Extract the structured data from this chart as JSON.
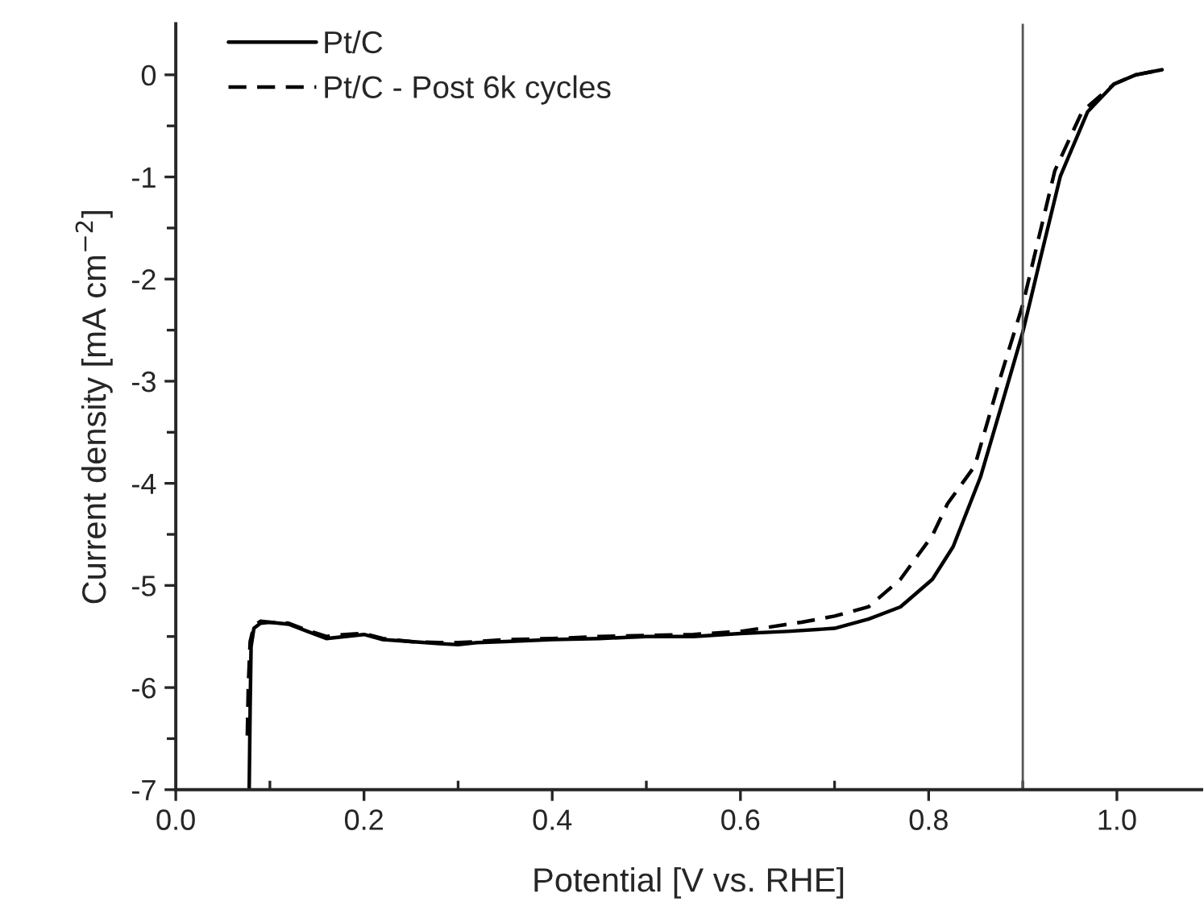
{
  "chart_data": {
    "type": "line",
    "xlabel": "Potential [V vs. RHE]",
    "ylabel": "Current density [mA cm$^{−2}$]",
    "xlim": [
      0,
      1.09
    ],
    "ylim": [
      -7,
      0.5
    ],
    "xticks": [
      {
        "value": 0.0,
        "label": "0.0"
      },
      {
        "value": 0.1,
        "label": null
      },
      {
        "value": 0.2,
        "label": "0.2"
      },
      {
        "value": 0.3,
        "label": null
      },
      {
        "value": 0.4,
        "label": "0.4"
      },
      {
        "value": 0.5,
        "label": null
      },
      {
        "value": 0.6,
        "label": "0.6"
      },
      {
        "value": 0.7,
        "label": null
      },
      {
        "value": 0.8,
        "label": "0.8"
      },
      {
        "value": 0.9,
        "label": null
      },
      {
        "value": 1.0,
        "label": "1.0"
      }
    ],
    "yticks": [
      {
        "value": -7,
        "label": "-7"
      },
      {
        "value": -6.5,
        "label": null
      },
      {
        "value": -6,
        "label": "-6"
      },
      {
        "value": -5.5,
        "label": null
      },
      {
        "value": -5,
        "label": "-5"
      },
      {
        "value": -4.5,
        "label": null
      },
      {
        "value": -4,
        "label": "-4"
      },
      {
        "value": -3.5,
        "label": null
      },
      {
        "value": -3,
        "label": "-3"
      },
      {
        "value": -2.5,
        "label": null
      },
      {
        "value": -2,
        "label": "-2"
      },
      {
        "value": -1.5,
        "label": null
      },
      {
        "value": -1,
        "label": "-1"
      },
      {
        "value": -0.5,
        "label": null
      },
      {
        "value": 0,
        "label": "0"
      }
    ],
    "grid": false,
    "legend": "top left",
    "marker": "none",
    "ref_lines": [
      {
        "axis": "x",
        "value": 0.9,
        "color": "#555555",
        "line_style": "solid"
      }
    ],
    "series": [
      {
        "name": "Pt/C",
        "color": "#000000",
        "line_style": "solid",
        "x": [
          0.078,
          0.079,
          0.08,
          0.083,
          0.09,
          0.1,
          0.12,
          0.14,
          0.16,
          0.18,
          0.2,
          0.22,
          0.25,
          0.28,
          0.3,
          0.32,
          0.35,
          0.4,
          0.45,
          0.5,
          0.55,
          0.6,
          0.65,
          0.7,
          0.736,
          0.77,
          0.804,
          0.826,
          0.855,
          0.877,
          0.9,
          0.92,
          0.94,
          0.969,
          0.997,
          1.02,
          1.048
        ],
        "values": [
          -7,
          -6.2,
          -5.6,
          -5.42,
          -5.37,
          -5.36,
          -5.38,
          -5.45,
          -5.52,
          -5.5,
          -5.48,
          -5.53,
          -5.55,
          -5.57,
          -5.58,
          -5.56,
          -5.55,
          -5.53,
          -5.52,
          -5.5,
          -5.5,
          -5.47,
          -5.45,
          -5.42,
          -5.33,
          -5.21,
          -4.94,
          -4.62,
          -3.94,
          -3.25,
          -2.52,
          -1.75,
          -0.99,
          -0.36,
          -0.09,
          0.0,
          0.05
        ]
      },
      {
        "name": "Pt/C - Post 6k cycles",
        "color": "#000000",
        "line_style": "dashed",
        "x": [
          0.076,
          0.077,
          0.079,
          0.083,
          0.09,
          0.1,
          0.12,
          0.14,
          0.16,
          0.18,
          0.2,
          0.22,
          0.25,
          0.28,
          0.3,
          0.32,
          0.35,
          0.4,
          0.45,
          0.5,
          0.55,
          0.6,
          0.665,
          0.7,
          0.736,
          0.77,
          0.804,
          0.82,
          0.849,
          0.875,
          0.9,
          0.934,
          0.963,
          0.997,
          1.02,
          1.048
        ],
        "values": [
          -6.47,
          -6.0,
          -5.55,
          -5.4,
          -5.35,
          -5.36,
          -5.37,
          -5.44,
          -5.5,
          -5.48,
          -5.47,
          -5.52,
          -5.55,
          -5.56,
          -5.56,
          -5.55,
          -5.53,
          -5.52,
          -5.5,
          -5.49,
          -5.48,
          -5.45,
          -5.36,
          -5.3,
          -5.21,
          -4.94,
          -4.51,
          -4.2,
          -3.83,
          -3.0,
          -2.25,
          -0.94,
          -0.36,
          -0.09,
          0.0,
          0.05
        ]
      }
    ]
  }
}
